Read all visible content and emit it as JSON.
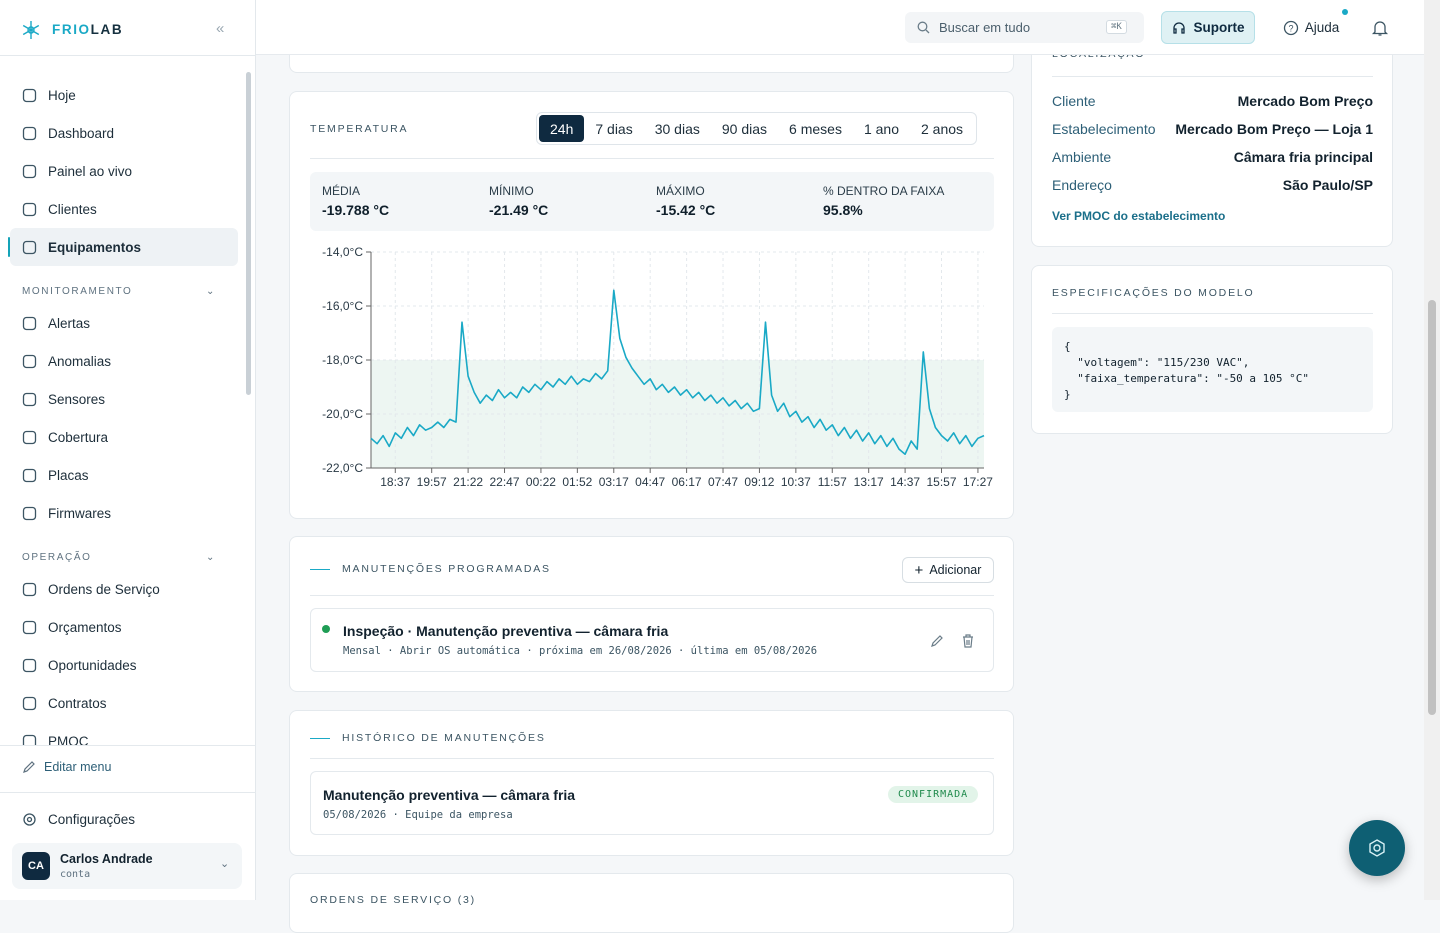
{
  "sidebar": {
    "brand": {
      "a": "FRIO",
      "b": "LAB"
    },
    "main_items": [
      "Hoje",
      "Dashboard",
      "Painel ao vivo",
      "Clientes",
      "Equipamentos"
    ],
    "sections": [
      {
        "title": "MONITORAMENTO",
        "items": [
          "Alertas",
          "Anomalias",
          "Sensores",
          "Cobertura",
          "Placas",
          "Firmwares"
        ]
      },
      {
        "title": "OPERAÇÃO",
        "items": [
          "Ordens de Serviço",
          "Orçamentos",
          "Oportunidades",
          "Contratos",
          "PMOC"
        ]
      }
    ],
    "edit_menu": "Editar menu",
    "settings": "Configurações",
    "user": {
      "initials": "CA",
      "name": "Carlos Andrade",
      "role": "conta"
    }
  },
  "header": {
    "search": "Buscar em tudo",
    "shortcut": "⌘K",
    "support": "Suporte",
    "help": "Ajuda"
  },
  "temperature": {
    "title": "TEMPERATURA",
    "ranges": [
      "24h",
      "7 dias",
      "30 dias",
      "90 dias",
      "6 meses",
      "1 ano",
      "2 anos"
    ],
    "stats": [
      {
        "label": "MÉDIA",
        "value": "-19.788 °C"
      },
      {
        "label": "MÍNIMO",
        "value": "-21.49 °C"
      },
      {
        "label": "MÁXIMO",
        "value": "-15.42 °C"
      },
      {
        "label": "% DENTRO DA FAIXA",
        "value": "95.8%"
      }
    ]
  },
  "chart_data": {
    "type": "line",
    "categories": [
      null,
      null,
      null,
      null,
      "18:37",
      null,
      null,
      null,
      null,
      null,
      "19:57",
      null,
      null,
      null,
      null,
      null,
      "21:22",
      null,
      null,
      null,
      null,
      null,
      "22:47",
      null,
      null,
      null,
      null,
      null,
      "00:22",
      null,
      null,
      null,
      null,
      null,
      "01:52",
      null,
      null,
      null,
      null,
      null,
      "03:17",
      null,
      null,
      null,
      null,
      null,
      "04:47",
      null,
      null,
      null,
      null,
      null,
      "06:17",
      null,
      null,
      null,
      null,
      null,
      "07:47",
      null,
      null,
      null,
      null,
      null,
      "09:12",
      null,
      null,
      null,
      null,
      null,
      "10:37",
      null,
      null,
      null,
      null,
      null,
      "11:57",
      null,
      null,
      null,
      null,
      null,
      "13:17",
      null,
      null,
      null,
      null,
      null,
      "14:37",
      null,
      null,
      null,
      null,
      null,
      "15:57",
      null,
      null,
      null,
      null,
      null,
      "17:27",
      null
    ],
    "values": [
      -20.9,
      -21.1,
      -20.8,
      -21.2,
      -20.7,
      -20.9,
      -20.5,
      -20.8,
      -20.4,
      -20.6,
      -20.5,
      -20.3,
      -20.5,
      -20.2,
      -20.3,
      -16.6,
      -18.6,
      -19.2,
      -19.6,
      -19.3,
      -19.5,
      -19.1,
      -19.4,
      -19.2,
      -19.4,
      -19.0,
      -19.2,
      -18.9,
      -19.1,
      -18.8,
      -19.0,
      -18.7,
      -18.9,
      -18.6,
      -18.9,
      -18.7,
      -18.8,
      -18.5,
      -18.7,
      -18.4,
      -15.42,
      -17.2,
      -17.9,
      -18.3,
      -18.6,
      -18.9,
      -18.7,
      -19.1,
      -18.9,
      -19.2,
      -19.0,
      -19.3,
      -19.1,
      -19.4,
      -19.2,
      -19.5,
      -19.3,
      -19.6,
      -19.4,
      -19.7,
      -19.5,
      -19.8,
      -19.6,
      -19.9,
      -19.8,
      -16.6,
      -19.3,
      -19.9,
      -19.6,
      -20.1,
      -19.9,
      -20.3,
      -20.1,
      -20.5,
      -20.2,
      -20.6,
      -20.4,
      -20.8,
      -20.5,
      -20.9,
      -20.6,
      -21.0,
      -20.7,
      -21.1,
      -20.8,
      -21.2,
      -20.9,
      -21.3,
      -21.49,
      -21.0,
      -21.3,
      -17.7,
      -19.8,
      -20.5,
      -20.8,
      -21.0,
      -20.7,
      -21.1,
      -20.8,
      -21.2,
      -20.9,
      -20.8
    ],
    "color": "#1aa9c6",
    "range_band": [
      -22,
      -18
    ],
    "band_color": "#edf6f2",
    "ylim": [
      -22,
      -14
    ],
    "yticks": [
      {
        "value": -22,
        "label": "-22,0°C"
      },
      {
        "value": -20,
        "label": "-20,0°C"
      },
      {
        "value": -18,
        "label": "-18,0°C"
      },
      {
        "value": -16,
        "label": "-16,0°C"
      },
      {
        "value": -14,
        "label": "-14,0°C"
      }
    ],
    "grid": true
  },
  "location": {
    "title": "LOCALIZAÇÃO",
    "rows": [
      {
        "label": "Cliente",
        "value": "Mercado Bom Preço"
      },
      {
        "label": "Estabelecimento",
        "value": "Mercado Bom Preço — Loja 1"
      },
      {
        "label": "Ambiente",
        "value": "Câmara fria principal"
      },
      {
        "label": "Endereço",
        "value": "São Paulo/SP"
      }
    ],
    "link": "Ver PMOC do estabelecimento"
  },
  "specs": {
    "title": "ESPECIFICAÇÕES DO MODELO",
    "code": [
      "{",
      "  \"voltagem\": \"115/230 VAC\",",
      "  \"faixa_temperatura\": \"-50 a 105 °C\"",
      "}"
    ]
  },
  "scheduled": {
    "title": "MANUTENÇÕES PROGRAMADAS",
    "add": "Adicionar",
    "item": {
      "title": "Inspeção · Manutenção preventiva — câmara fria",
      "meta": "Mensal · Abrir OS automática · próxima em 26/08/2026 · última em 05/08/2026"
    }
  },
  "history": {
    "title": "HISTÓRICO DE MANUTENÇÕES",
    "item": {
      "title": "Manutenção preventiva — câmara fria",
      "status": "CONFIRMADA",
      "meta": "05/08/2026 · Equipe da empresa"
    }
  },
  "orders": {
    "title": "ORDENS DE SERVIÇO (3)"
  }
}
